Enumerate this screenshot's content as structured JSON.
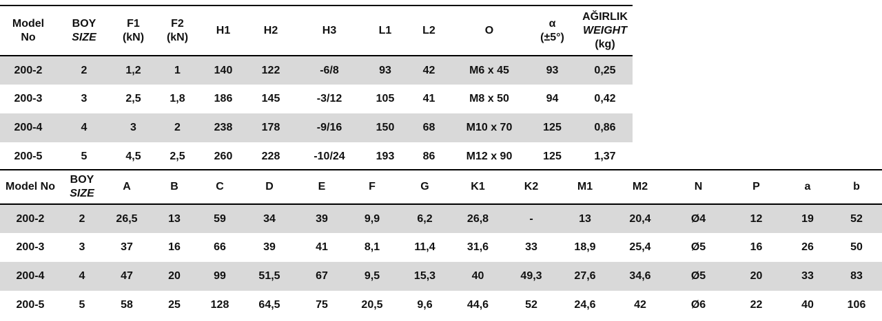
{
  "tables": [
    {
      "header": [
        [
          "Model",
          "No"
        ],
        [
          "BOY",
          "SIZE"
        ],
        [
          "F1",
          "(kN)"
        ],
        [
          "F2",
          "(kN)"
        ],
        [
          "H1"
        ],
        [
          "H2"
        ],
        [
          "H3"
        ],
        [
          "L1"
        ],
        [
          "L2"
        ],
        [
          "O"
        ],
        [
          "α",
          "(±5°)"
        ],
        [
          "AĞIRLIK",
          "WEIGHT",
          "(kg)"
        ]
      ],
      "rows": [
        [
          "200-2",
          "2",
          "1,2",
          "1",
          "140",
          "122",
          "-6/8",
          "93",
          "42",
          "M6 x 45",
          "93",
          "0,25"
        ],
        [
          "200-3",
          "3",
          "2,5",
          "1,8",
          "186",
          "145",
          "-3/12",
          "105",
          "41",
          "M8 x 50",
          "94",
          "0,42"
        ],
        [
          "200-4",
          "4",
          "3",
          "2",
          "238",
          "178",
          "-9/16",
          "150",
          "68",
          "M10 x 70",
          "125",
          "0,86"
        ],
        [
          "200-5",
          "5",
          "4,5",
          "2,5",
          "260",
          "228",
          "-10/24",
          "193",
          "86",
          "M12 x 90",
          "125",
          "1,37"
        ]
      ]
    },
    {
      "header": [
        [
          "Model No"
        ],
        [
          "BOY",
          "SIZE"
        ],
        [
          "A"
        ],
        [
          "B"
        ],
        [
          "C"
        ],
        [
          "D"
        ],
        [
          "E"
        ],
        [
          "F"
        ],
        [
          "G"
        ],
        [
          "K1"
        ],
        [
          "K2"
        ],
        [
          "M1"
        ],
        [
          "M2"
        ],
        [
          "N"
        ],
        [
          "P"
        ],
        [
          "a"
        ],
        [
          "b"
        ]
      ],
      "rows": [
        [
          "200-2",
          "2",
          "26,5",
          "13",
          "59",
          "34",
          "39",
          "9,9",
          "6,2",
          "26,8",
          "-",
          "13",
          "20,4",
          "Ø4",
          "12",
          "19",
          "52"
        ],
        [
          "200-3",
          "3",
          "37",
          "16",
          "66",
          "39",
          "41",
          "8,1",
          "11,4",
          "31,6",
          "33",
          "18,9",
          "25,4",
          "Ø5",
          "16",
          "26",
          "50"
        ],
        [
          "200-4",
          "4",
          "47",
          "20",
          "99",
          "51,5",
          "67",
          "9,5",
          "15,3",
          "40",
          "49,3",
          "27,6",
          "34,6",
          "Ø5",
          "20",
          "33",
          "83"
        ],
        [
          "200-5",
          "5",
          "58",
          "25",
          "128",
          "64,5",
          "75",
          "20,5",
          "9,6",
          "44,6",
          "52",
          "24,6",
          "42",
          "Ø6",
          "22",
          "40",
          "106"
        ]
      ]
    }
  ]
}
